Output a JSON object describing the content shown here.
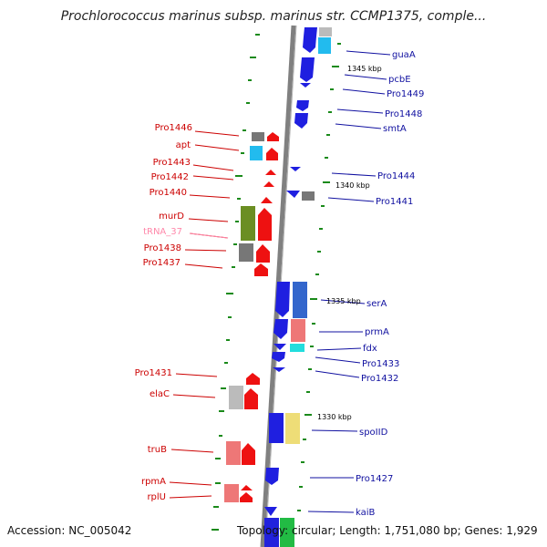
{
  "title": "Prochlorococcus marinus subsp. marinus str. CCMP1375, comple...",
  "footer": {
    "accession": "Accession: NC_005042",
    "summary": "Topology: circular; Length: 1,751,080 bp; Genes: 1,929"
  },
  "colors": {
    "left_label": "#cc0000",
    "right_label": "#1010a0",
    "trna_label": "#ff88aa",
    "backbone": "#808080",
    "gc_tick": "#1a8a1a"
  },
  "kbp_marks": [
    "1345 kbp",
    "1340 kbp",
    "1335 kbp",
    "1330 kbp"
  ],
  "left_genes": [
    {
      "name": "Pro1446"
    },
    {
      "name": "apt"
    },
    {
      "name": "Pro1443"
    },
    {
      "name": "Pro1442"
    },
    {
      "name": "Pro1440"
    },
    {
      "name": "murD"
    },
    {
      "name": "tRNA_37"
    },
    {
      "name": "Pro1438"
    },
    {
      "name": "Pro1437"
    },
    {
      "name": "Pro1431"
    },
    {
      "name": "elaC"
    },
    {
      "name": "truB"
    },
    {
      "name": "rpmA"
    },
    {
      "name": "rplU"
    }
  ],
  "right_genes": [
    {
      "name": "guaA"
    },
    {
      "name": "pcbE"
    },
    {
      "name": "Pro1449"
    },
    {
      "name": "Pro1448"
    },
    {
      "name": "smtA"
    },
    {
      "name": "Pro1444"
    },
    {
      "name": "Pro1441"
    },
    {
      "name": "serA"
    },
    {
      "name": "prmA"
    },
    {
      "name": "fdx"
    },
    {
      "name": "Pro1433"
    },
    {
      "name": "Pro1432"
    },
    {
      "name": "spoIID"
    },
    {
      "name": "Pro1427"
    },
    {
      "name": "kaiB"
    }
  ]
}
